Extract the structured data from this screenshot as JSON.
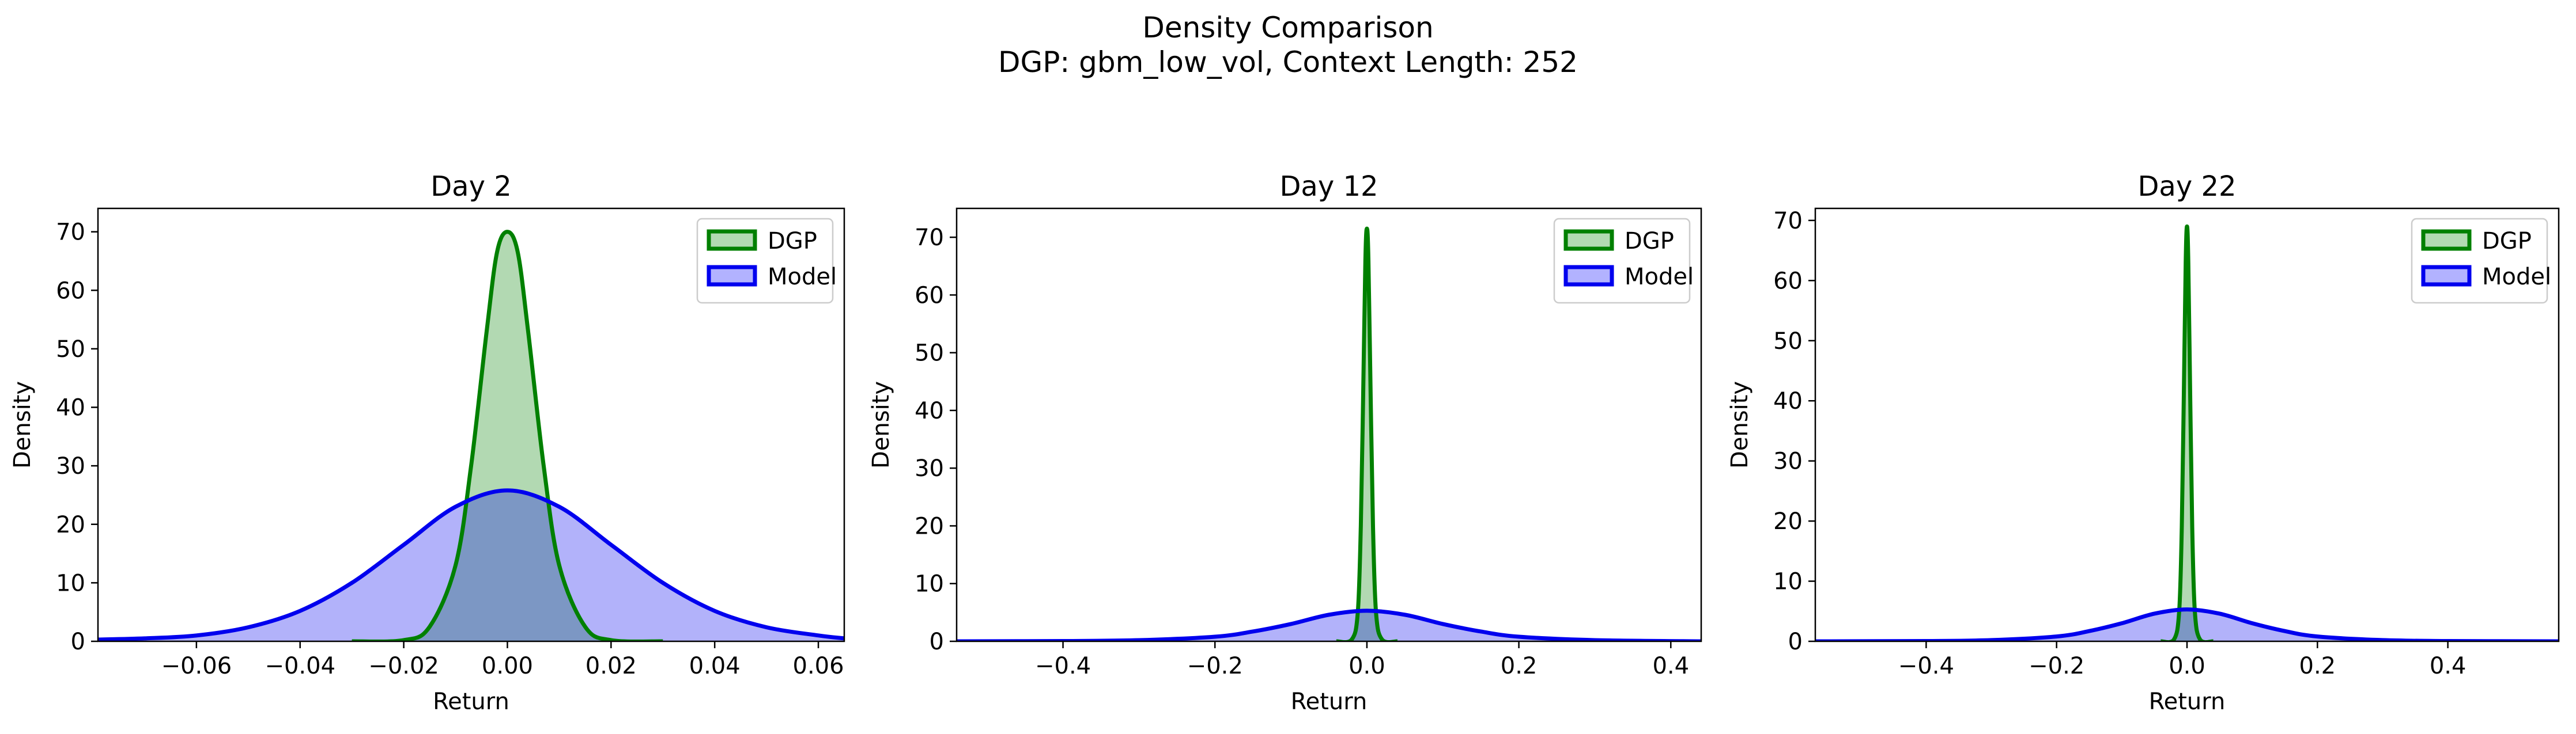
{
  "figure": {
    "title_line1": "Density Comparison",
    "title_line2": "DGP: gbm_low_vol, Context Length: 252"
  },
  "colors": {
    "dgp_line": "#008000",
    "dgp_fill": "#b2dab2",
    "model_line": "#0000ee",
    "model_fill": "#b2b2ff"
  },
  "chart_data": [
    {
      "type": "area",
      "title": "Day 2",
      "xlabel": "Return",
      "ylabel": "Density",
      "xlim": [
        -0.079,
        0.065
      ],
      "ylim": [
        0,
        74
      ],
      "xticks": [
        -0.06,
        -0.04,
        -0.02,
        0.0,
        0.02,
        0.04,
        0.06
      ],
      "xtick_labels": [
        "−0.06",
        "−0.04",
        "−0.02",
        "0.00",
        "0.02",
        "0.04",
        "0.06"
      ],
      "yticks": [
        0,
        10,
        20,
        30,
        40,
        50,
        60,
        70
      ],
      "legend": "top-right",
      "grid": false,
      "series": [
        {
          "name": "DGP",
          "x": [
            -0.03,
            -0.02,
            -0.015,
            -0.01,
            -0.007,
            -0.004,
            -0.002,
            0.0,
            0.002,
            0.004,
            0.007,
            0.01,
            0.015,
            0.02,
            0.03
          ],
          "y": [
            0,
            0.2,
            2.5,
            13,
            30,
            53,
            66.5,
            70,
            66.5,
            53,
            30,
            13,
            2.5,
            0.2,
            0
          ]
        },
        {
          "name": "Model",
          "x": [
            -0.079,
            -0.07,
            -0.06,
            -0.05,
            -0.04,
            -0.03,
            -0.02,
            -0.01,
            0.0,
            0.01,
            0.02,
            0.03,
            0.04,
            0.05,
            0.06,
            0.065
          ],
          "y": [
            0.3,
            0.5,
            1,
            2.4,
            5.2,
            10,
            16.5,
            23,
            25.8,
            23,
            16.5,
            10,
            5.2,
            2.4,
            1,
            0.5
          ]
        }
      ]
    },
    {
      "type": "area",
      "title": "Day 12",
      "xlabel": "Return",
      "ylabel": "Density",
      "xlim": [
        -0.54,
        0.44
      ],
      "ylim": [
        0,
        75
      ],
      "xticks": [
        -0.4,
        -0.2,
        0.0,
        0.2,
        0.4
      ],
      "xtick_labels": [
        "−0.4",
        "−0.2",
        "0.0",
        "0.2",
        "0.4"
      ],
      "yticks": [
        0,
        10,
        20,
        30,
        40,
        50,
        60,
        70
      ],
      "legend": "top-right",
      "grid": false,
      "series": [
        {
          "name": "DGP",
          "x": [
            -0.04,
            -0.02,
            -0.012,
            -0.008,
            -0.005,
            -0.002,
            0.0,
            0.002,
            0.005,
            0.008,
            0.012,
            0.02,
            0.04
          ],
          "y": [
            0,
            0.3,
            5,
            20,
            42,
            66,
            71.5,
            66,
            42,
            20,
            5,
            0.3,
            0
          ]
        },
        {
          "name": "Model",
          "x": [
            -0.54,
            -0.4,
            -0.3,
            -0.2,
            -0.15,
            -0.1,
            -0.05,
            0.0,
            0.05,
            0.1,
            0.15,
            0.2,
            0.3,
            0.44
          ],
          "y": [
            0,
            0.05,
            0.2,
            0.8,
            1.7,
            3.0,
            4.6,
            5.3,
            4.6,
            3.0,
            1.7,
            0.8,
            0.2,
            0
          ]
        }
      ]
    },
    {
      "type": "area",
      "title": "Day 22",
      "xlabel": "Return",
      "ylabel": "Density",
      "xlim": [
        -0.57,
        0.57
      ],
      "ylim": [
        0,
        72
      ],
      "xticks": [
        -0.4,
        -0.2,
        0.0,
        0.2,
        0.4
      ],
      "xtick_labels": [
        "−0.4",
        "−0.2",
        "0.0",
        "0.2",
        "0.4"
      ],
      "yticks": [
        0,
        10,
        20,
        30,
        40,
        50,
        60,
        70
      ],
      "legend": "top-right",
      "grid": false,
      "series": [
        {
          "name": "DGP",
          "x": [
            -0.04,
            -0.02,
            -0.012,
            -0.008,
            -0.005,
            -0.002,
            0.0,
            0.002,
            0.005,
            0.008,
            0.012,
            0.02,
            0.04
          ],
          "y": [
            0,
            0.3,
            5,
            19,
            40,
            63,
            69,
            63,
            40,
            19,
            5,
            0.3,
            0
          ]
        },
        {
          "name": "Model",
          "x": [
            -0.57,
            -0.4,
            -0.3,
            -0.2,
            -0.15,
            -0.1,
            -0.05,
            0.0,
            0.05,
            0.1,
            0.15,
            0.2,
            0.3,
            0.4,
            0.57
          ],
          "y": [
            0,
            0.05,
            0.2,
            0.8,
            1.7,
            3.0,
            4.6,
            5.3,
            4.6,
            3.0,
            1.7,
            0.8,
            0.2,
            0.05,
            0
          ]
        }
      ]
    }
  ]
}
